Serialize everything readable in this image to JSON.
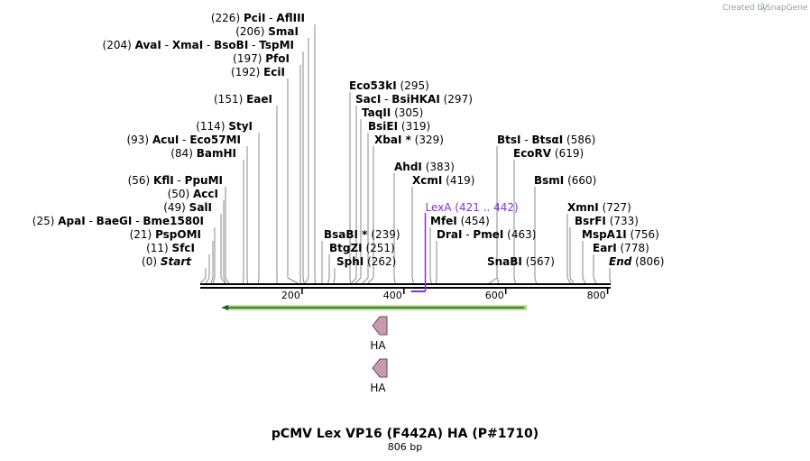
{
  "credit": {
    "prefix": "Created by",
    "brand": "SnapGene",
    "icon": "snapgene-logo-icon"
  },
  "title": "pCMV Lex VP16 (F442A) HA (P#1710)",
  "subtitle": "806 bp",
  "sequence_length": 806,
  "ticks": [
    {
      "bp": 200,
      "label": "200"
    },
    {
      "bp": 400,
      "label": "400"
    },
    {
      "bp": 600,
      "label": "600"
    },
    {
      "bp": 800,
      "label": "800"
    }
  ],
  "sites": [
    {
      "line": 16,
      "row": 0,
      "pre": "(0)",
      "names": [
        "Start"
      ],
      "post": "",
      "italic": true,
      "bp": 0
    },
    {
      "line": 17,
      "row": 1,
      "pre": "(11)",
      "names": [
        "SfcI"
      ],
      "post": "",
      "bp": 11
    },
    {
      "line": 18,
      "row": 2,
      "pre": "(21)",
      "names": [
        "PspOMI"
      ],
      "post": "",
      "bp": 21
    },
    {
      "line": 19,
      "row": 3,
      "pre": "(25)",
      "names": [
        "ApaI",
        "BaeGI",
        "Bme1580I"
      ],
      "post": "",
      "bp": 25
    },
    {
      "line": 20,
      "row": 4,
      "pre": "(49)",
      "names": [
        "SalI"
      ],
      "post": "",
      "bp": 49
    },
    {
      "line": 21,
      "row": 5,
      "pre": "(50)",
      "names": [
        "AccI"
      ],
      "post": "",
      "bp": 50
    },
    {
      "line": 22,
      "row": 6,
      "pre": "(56)",
      "names": [
        "KflI",
        "PpuMI"
      ],
      "post": "",
      "bp": 56
    },
    {
      "line": 23,
      "row": 8,
      "pre": "(84)",
      "names": [
        "BamHI"
      ],
      "post": "",
      "bp": 84
    },
    {
      "line": 24,
      "row": 9,
      "pre": "(93)",
      "names": [
        "AcuI",
        "Eco57MI"
      ],
      "post": "",
      "bp": 93
    },
    {
      "line": 25,
      "row": 10,
      "pre": "(114)",
      "names": [
        "StyI"
      ],
      "post": "",
      "bp": 114
    },
    {
      "line": 26,
      "row": 12,
      "pre": "(151)",
      "names": [
        "EaeI"
      ],
      "post": "",
      "bp": 151
    },
    {
      "line": 27,
      "row": 14,
      "pre": "(192)",
      "names": [
        "EciI"
      ],
      "post": "",
      "bp": 192
    },
    {
      "line": 28,
      "row": 15,
      "pre": "(197)",
      "names": [
        "PfoI"
      ],
      "post": "",
      "bp": 197
    },
    {
      "line": 29,
      "row": 16,
      "pre": "(204)",
      "names": [
        "AvaI",
        "XmaI",
        "BsoBI",
        "TspMI"
      ],
      "post": "",
      "bp": 204
    },
    {
      "line": 30,
      "row": 17,
      "pre": "(206)",
      "names": [
        "SmaI"
      ],
      "post": "",
      "bp": 206
    },
    {
      "line": 31,
      "row": 18,
      "pre": "(226)",
      "names": [
        "PciI",
        "AflIII"
      ],
      "post": "",
      "bp": 226
    },
    {
      "line": 32,
      "row": 0,
      "pre": "",
      "names": [
        "SphI"
      ],
      "post": "(262)",
      "bp": 262
    },
    {
      "line": 33,
      "row": 1,
      "pre": "",
      "names": [
        "BtgZI"
      ],
      "post": "(251)",
      "bp": 251
    },
    {
      "line": 34,
      "row": 2,
      "pre": "",
      "names": [
        "BsaBI *"
      ],
      "post": "(239)",
      "bp": 239
    },
    {
      "line": 35,
      "row": 9,
      "pre": "",
      "names": [
        "XbaI *"
      ],
      "post": "(329)",
      "bp": 329
    },
    {
      "line": 36,
      "row": 10,
      "pre": "",
      "names": [
        "BsiEI"
      ],
      "post": "(319)",
      "bp": 319
    },
    {
      "line": 37,
      "row": 11,
      "pre": "",
      "names": [
        "TaqII"
      ],
      "post": "(305)",
      "bp": 305
    },
    {
      "line": 38,
      "row": 12,
      "pre": "",
      "names": [
        "SacI",
        "BsiHKAI"
      ],
      "post": "(297)",
      "bp": 297
    },
    {
      "line": 39,
      "row": 13,
      "pre": "",
      "names": [
        "Eco53kI"
      ],
      "post": "(295)",
      "bp": 295
    },
    {
      "line": 40,
      "row": 6,
      "pre": "",
      "names": [
        "XcmI"
      ],
      "post": "(419)",
      "bp": 419
    },
    {
      "line": 41,
      "row": 7,
      "pre": "",
      "names": [
        "AhdI"
      ],
      "post": "(383)",
      "bp": 383
    },
    {
      "line": 42,
      "row": 2,
      "pre": "",
      "names": [
        "DraI",
        "PmeI"
      ],
      "post": "(463)",
      "bp": 463
    },
    {
      "line": 43,
      "row": 3,
      "pre": "",
      "names": [
        "MfeI"
      ],
      "post": "(454)",
      "bp": 454
    },
    {
      "line": 44,
      "row": 0,
      "pre": "",
      "names": [
        "SnaBI"
      ],
      "post": "(567)",
      "bp": 567
    },
    {
      "line": 45,
      "row": 6,
      "pre": "",
      "names": [
        "BsmI"
      ],
      "post": "(660)",
      "bp": 660
    },
    {
      "line": 46,
      "row": 8,
      "pre": "",
      "names": [
        "EcoRV"
      ],
      "post": "(619)",
      "bp": 619
    },
    {
      "line": 47,
      "row": 9,
      "pre": "",
      "names": [
        "BtsI",
        "BtsαI"
      ],
      "post": "(586)",
      "bp": 586
    },
    {
      "line": 48,
      "row": 0,
      "pre": "",
      "names": [
        "End"
      ],
      "post": "(806)",
      "italic": true,
      "bp": 806
    },
    {
      "line": 49,
      "row": 1,
      "pre": "",
      "names": [
        "EarI"
      ],
      "post": "(778)",
      "bp": 778
    },
    {
      "line": 50,
      "row": 2,
      "pre": "",
      "names": [
        "MspA1I"
      ],
      "post": "(756)",
      "bp": 756
    },
    {
      "line": 51,
      "row": 3,
      "pre": "",
      "names": [
        "BsrFI"
      ],
      "post": "(733)",
      "bp": 733
    },
    {
      "line": 52,
      "row": 4,
      "pre": "",
      "names": [
        "XmnI"
      ],
      "post": "(727)",
      "bp": 727
    }
  ],
  "feature_marker": {
    "name": "LexA",
    "range": "(421 .. 442)",
    "start": 421,
    "end": 442,
    "color": "#8a2be2"
  },
  "features": [
    {
      "name": "",
      "type": "long-arrow",
      "start": 41,
      "end": 640,
      "direction": "reverse",
      "color": "#8bc34a"
    },
    {
      "name": "HA",
      "type": "pentagon",
      "start": 341,
      "end": 368,
      "direction": "reverse",
      "color": "#c89ab0"
    },
    {
      "name": "HA",
      "type": "pentagon",
      "start": 341,
      "end": 368,
      "direction": "reverse",
      "color": "#c89ab0"
    }
  ]
}
